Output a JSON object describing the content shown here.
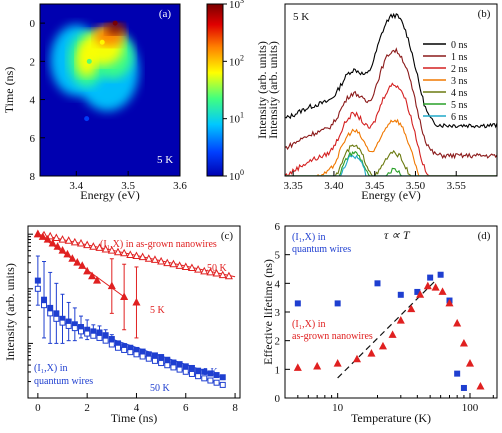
{
  "chart_data": [
    {
      "panel": "(a)",
      "type": "heatmap",
      "xlabel": "Energy (eV)",
      "ylabel": "Time (ns)",
      "xlim": [
        3.33,
        3.6
      ],
      "ylim": [
        8,
        -1
      ],
      "xticks": [
        "3.4",
        "3.5",
        "3.6"
      ],
      "yticks": [
        "0",
        "2",
        "4",
        "6",
        "8"
      ],
      "annotation": "5 K",
      "colorbar": {
        "label": "Intensity (arb. units)",
        "scale": "log",
        "range": [
          1,
          1000
        ],
        "ticks": [
          "10^0",
          "10^1",
          "10^2",
          "10^3"
        ],
        "colors": [
          "#0000b0",
          "#0040ff",
          "#00c8ff",
          "#40ff80",
          "#ffff00",
          "#ff8000",
          "#e00000",
          "#7a0000"
        ]
      },
      "features": [
        {
          "energy": 3.475,
          "time": 0.0,
          "intensity": 1000
        },
        {
          "energy": 3.45,
          "time": 1.0,
          "intensity": 60
        },
        {
          "energy": 3.425,
          "time": 2.0,
          "intensity": 15
        },
        {
          "energy": 3.42,
          "time": 5.0,
          "intensity": 3
        }
      ]
    },
    {
      "panel": "(b)",
      "type": "line",
      "xlabel": "Energy (eV)",
      "ylabel": "Intensity (arb. units)",
      "xlim": [
        3.34,
        3.6
      ],
      "xticks": [
        "3.35",
        "3.40",
        "3.45",
        "3.50",
        "3.55"
      ],
      "yscale": "log",
      "annotation": "5 K",
      "legend_position": "top-right",
      "series": [
        {
          "name": "0 ns",
          "color": "#000000",
          "peak1": 0.5,
          "peak2": 1.0,
          "base": 0.07,
          "level": 1.0
        },
        {
          "name": "1 ns",
          "color": "#8b1a1a",
          "peak1": 0.55,
          "peak2": 0.75,
          "base": 0.06,
          "level": 0.55
        },
        {
          "name": "2 ns",
          "color": "#d42020",
          "peak1": 0.6,
          "peak2": 0.55,
          "base": 0.05,
          "level": 0.32
        },
        {
          "name": "3 ns",
          "color": "#f07800",
          "peak1": 0.65,
          "peak2": 0.35,
          "base": 0.05,
          "level": 0.2
        },
        {
          "name": "4 ns",
          "color": "#6b7a10",
          "peak1": 0.7,
          "peak2": 0.22,
          "base": 0.05,
          "level": 0.13
        },
        {
          "name": "5 ns",
          "color": "#28a028",
          "peak1": 0.7,
          "peak2": 0.16,
          "base": 0.05,
          "level": 0.11
        },
        {
          "name": "6 ns",
          "color": "#20a8c8",
          "peak1": 0.72,
          "peak2": 0.12,
          "base": 0.05,
          "level": 0.1
        }
      ]
    },
    {
      "panel": "(c)",
      "type": "scatter",
      "xlabel": "Time (ns)",
      "ylabel": "Intensity (arb. units)",
      "xlim": [
        -0.4,
        8.2
      ],
      "xticks": [
        "0",
        "2",
        "4",
        "6",
        "8"
      ],
      "yscale": "log",
      "ylim_decades": [
        -3.0,
        0.15
      ],
      "series": [
        {
          "name": "(I1,X) in as-grown nanowires 50 K",
          "color": "#e02020",
          "marker": "open-triangle",
          "x": [
            0.0,
            0.25,
            0.5,
            0.75,
            1.0,
            1.25,
            1.5,
            1.75,
            2.0,
            2.25,
            2.5,
            2.75,
            3.0,
            3.25,
            3.5,
            3.75,
            4.0,
            4.25,
            4.5,
            4.75,
            5.0,
            5.25,
            5.5,
            5.75,
            6.0,
            6.25,
            6.5,
            6.75,
            7.0,
            7.25,
            7.5,
            7.75
          ],
          "y": [
            0.0,
            -0.02,
            -0.04,
            -0.07,
            -0.1,
            -0.12,
            -0.15,
            -0.17,
            -0.2,
            -0.23,
            -0.25,
            -0.28,
            -0.3,
            -0.33,
            -0.35,
            -0.38,
            -0.4,
            -0.42,
            -0.45,
            -0.47,
            -0.5,
            -0.53,
            -0.55,
            -0.58,
            -0.6,
            -0.62,
            -0.65,
            -0.68,
            -0.7,
            -0.72,
            -0.75,
            -0.77
          ]
        },
        {
          "name": "(I1,X) in as-grown nanowires 5 K",
          "color": "#e02020",
          "marker": "filled-triangle",
          "x": [
            0.0,
            0.2,
            0.4,
            0.6,
            0.8,
            1.0,
            1.2,
            1.4,
            1.6,
            1.8,
            2.0,
            2.2,
            2.4,
            3.0,
            3.5,
            4.0
          ],
          "y": [
            0.0,
            -0.05,
            -0.1,
            -0.17,
            -0.23,
            -0.3,
            -0.37,
            -0.45,
            -0.52,
            -0.58,
            -0.68,
            -0.77,
            -0.85,
            -0.95,
            -1.15,
            -1.25
          ],
          "yerr": [
            0,
            0,
            0,
            0,
            0,
            0,
            0,
            0,
            0,
            0,
            0,
            0,
            0,
            0.5,
            0.6,
            0.65
          ]
        },
        {
          "name": "(I1,X) in quantum wires 5 K",
          "color": "#1f3fd0",
          "marker": "filled-square",
          "x": [
            0.0,
            0.25,
            0.5,
            0.75,
            1.0,
            1.25,
            1.5,
            1.75,
            2.0,
            2.25,
            2.5,
            2.75,
            3.0,
            3.25,
            3.5,
            3.75,
            4.0,
            4.25,
            4.5,
            4.75,
            5.0,
            5.25,
            5.5,
            5.75,
            6.0,
            6.25,
            6.5,
            6.75,
            7.0,
            7.25,
            7.5
          ],
          "y": [
            -0.85,
            -1.2,
            -1.35,
            -1.45,
            -1.55,
            -1.6,
            -1.65,
            -1.7,
            -1.75,
            -1.78,
            -1.8,
            -1.85,
            -1.92,
            -2.0,
            -2.05,
            -2.08,
            -2.12,
            -2.15,
            -2.2,
            -2.22,
            -2.25,
            -2.3,
            -2.35,
            -2.38,
            -2.42,
            -2.45,
            -2.5,
            -2.52,
            -2.55,
            -2.58,
            -2.62
          ],
          "yerr": [
            0.45,
            0.7,
            0.65,
            0.55,
            0.45,
            0.35,
            0.3,
            0.2,
            0.18,
            0.12,
            0.12,
            0.1,
            0.08,
            0,
            0,
            0,
            0,
            0,
            0,
            0,
            0,
            0,
            0,
            0,
            0,
            0,
            0,
            0,
            0,
            0,
            0
          ]
        },
        {
          "name": "(I1,X) in quantum wires 50 K",
          "color": "#1f3fd0",
          "marker": "open-square",
          "x": [
            0.0,
            0.25,
            0.5,
            0.75,
            1.0,
            1.25,
            1.5,
            1.75,
            2.0,
            2.25,
            2.5,
            2.75,
            3.0,
            3.25,
            3.5,
            3.75,
            4.0,
            4.25,
            4.5,
            4.75,
            5.0,
            5.25,
            5.5,
            5.75,
            6.0,
            6.25,
            6.5,
            6.75,
            7.0,
            7.25,
            7.5
          ],
          "y": [
            -1.0,
            -1.3,
            -1.45,
            -1.55,
            -1.62,
            -1.68,
            -1.72,
            -1.78,
            -1.82,
            -1.86,
            -1.9,
            -1.95,
            -2.02,
            -2.08,
            -2.12,
            -2.16,
            -2.2,
            -2.24,
            -2.28,
            -2.32,
            -2.36,
            -2.4,
            -2.44,
            -2.48,
            -2.52,
            -2.56,
            -2.6,
            -2.64,
            -2.68,
            -2.72,
            -2.76
          ]
        }
      ],
      "fits": [
        {
          "series": "(I1,X) in as-grown nanowires 50 K",
          "x": [
            0,
            8
          ],
          "y": [
            0.0,
            -0.78
          ]
        },
        {
          "series": "(I1,X) in as-grown nanowires 5 K",
          "x": [
            0,
            3.6
          ],
          "y": [
            0.0,
            -1.18
          ]
        },
        {
          "series": "(I1,X) in quantum wires 5 K",
          "x": [
            3.0,
            7.5
          ],
          "y": [
            -1.92,
            -2.62
          ]
        },
        {
          "series": "(I1,X) in quantum wires 50 K",
          "x": [
            3.0,
            7.5
          ],
          "y": [
            -2.02,
            -2.76
          ]
        }
      ],
      "annotations": [
        "(I₁,X) in as-grown nanowires",
        "50 K",
        "5 K",
        "(I₁,X) in",
        "quantum wires",
        "5 K",
        "50 K"
      ]
    },
    {
      "panel": "(d)",
      "type": "scatter",
      "xlabel": "Temperature (K)",
      "ylabel": "Effective lifetime (ns)",
      "xscale": "log",
      "xlim": [
        4,
        160
      ],
      "ylim": [
        0,
        6
      ],
      "xticks": [
        "10",
        "100"
      ],
      "yticks": [
        "0",
        "1",
        "2",
        "3",
        "4",
        "5",
        "6"
      ],
      "series": [
        {
          "name": "(I1,X) in quantum wires",
          "color": "#1f3fd0",
          "marker": "filled-square",
          "x": [
            5,
            10,
            20,
            30,
            40,
            50,
            60,
            70,
            80,
            90
          ],
          "y": [
            3.3,
            3.3,
            4.0,
            3.6,
            3.7,
            4.2,
            4.3,
            3.4,
            0.85,
            0.35
          ]
        },
        {
          "name": "(I1,X) in as-grown nanowires",
          "color": "#e02020",
          "marker": "filled-triangle",
          "x": [
            5,
            7,
            10,
            14,
            18,
            22,
            26,
            30,
            36,
            42,
            48,
            55,
            62,
            70,
            80,
            90,
            100,
            120
          ],
          "y": [
            1.05,
            1.1,
            1.2,
            1.35,
            1.55,
            1.8,
            2.2,
            2.7,
            3.1,
            3.6,
            3.9,
            3.85,
            3.7,
            3.3,
            2.6,
            1.9,
            1.2,
            0.4
          ]
        }
      ],
      "trend": {
        "x": [
          10,
          55
        ],
        "y": [
          0.7,
          4.1
        ]
      },
      "annotations": [
        "(I₁,X) in",
        "quantum wires",
        "(I₁,X) in",
        "as-grown nanowires",
        "τ ∝ T"
      ]
    }
  ]
}
